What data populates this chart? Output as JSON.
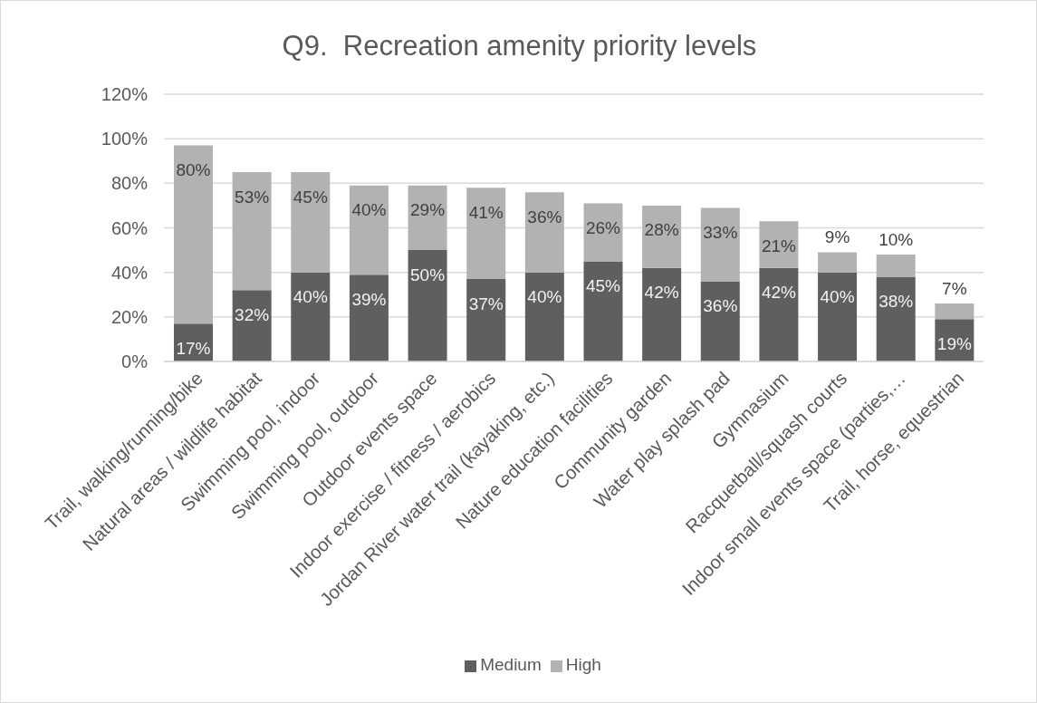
{
  "chart_data": {
    "type": "bar",
    "title": "Q9.  Recreation amenity priority levels",
    "categories": [
      "Trail, walking/running/bike",
      "Natural areas / wildlife habitat",
      "Swimming pool, indoor",
      "Swimming pool, outdoor",
      "Outdoor events space",
      "Indoor exercise / fitness / aerobics",
      "Jordan River water trail (kayaking, etc.)",
      "Nature education facilities",
      "Community garden",
      "Water play splash pad",
      "Gymnasium",
      "Racquetball/squash courts",
      "Indoor small events space (parties,…",
      "Trail, horse, equestrian"
    ],
    "series": [
      {
        "name": "Medium",
        "color": "#5f5f5f",
        "values": [
          17,
          32,
          40,
          39,
          50,
          37,
          40,
          45,
          42,
          36,
          42,
          40,
          38,
          19
        ],
        "value_labels": [
          "17%",
          "32%",
          "40%",
          "39%",
          "50%",
          "37%",
          "40%",
          "45%",
          "42%",
          "36%",
          "42%",
          "40%",
          "38%",
          "19%"
        ]
      },
      {
        "name": "High",
        "color": "#b2b2b2",
        "values": [
          80,
          53,
          45,
          40,
          29,
          41,
          36,
          26,
          28,
          33,
          21,
          9,
          10,
          7
        ],
        "value_labels": [
          "80%",
          "53%",
          "45%",
          "40%",
          "29%",
          "41%",
          "36%",
          "26%",
          "28%",
          "33%",
          "21%",
          "9%",
          "10%",
          "7%"
        ]
      }
    ],
    "stacked": true,
    "ylim": [
      0,
      120
    ],
    "yticks": [
      {
        "value": 0,
        "label": "0%"
      },
      {
        "value": 20,
        "label": "20%"
      },
      {
        "value": 40,
        "label": "40%"
      },
      {
        "value": 60,
        "label": "60%"
      },
      {
        "value": 80,
        "label": "80%"
      },
      {
        "value": 100,
        "label": "100%"
      },
      {
        "value": 120,
        "label": "120%"
      }
    ],
    "grid": "y",
    "legend": "bottom"
  }
}
